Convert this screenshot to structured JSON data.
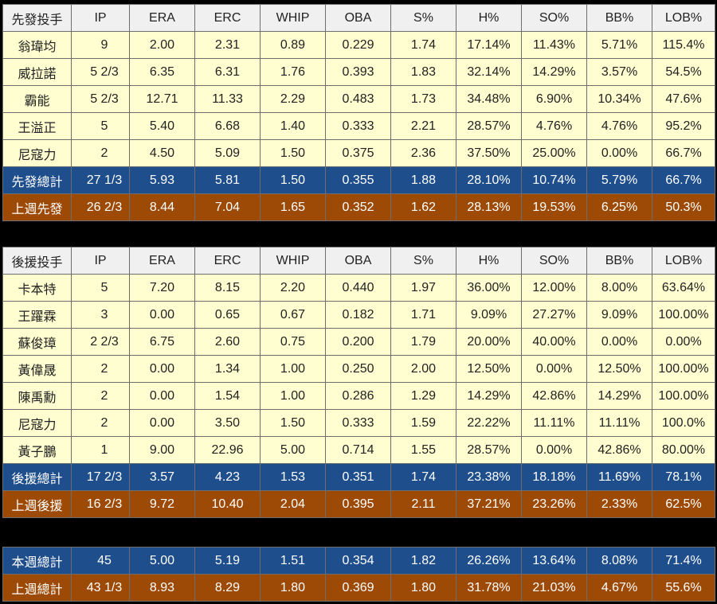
{
  "columns": [
    "IP",
    "ERA",
    "ERC",
    "WHIP",
    "OBA",
    "S%",
    "H%",
    "SO%",
    "BB%",
    "LOB%"
  ],
  "starters": {
    "header": "先發投手",
    "rows": [
      {
        "name": "翁瑋均",
        "vals": [
          "9",
          "2.00",
          "2.31",
          "0.89",
          "0.229",
          "1.74",
          "17.14%",
          "11.43%",
          "5.71%",
          "115.4%"
        ]
      },
      {
        "name": "威拉諾",
        "vals": [
          "5 2/3",
          "6.35",
          "6.31",
          "1.76",
          "0.393",
          "1.83",
          "32.14%",
          "14.29%",
          "3.57%",
          "54.5%"
        ]
      },
      {
        "name": "霸能",
        "vals": [
          "5 2/3",
          "12.71",
          "11.33",
          "2.29",
          "0.483",
          "1.73",
          "34.48%",
          "6.90%",
          "10.34%",
          "47.6%"
        ]
      },
      {
        "name": "王溢正",
        "vals": [
          "5",
          "5.40",
          "6.68",
          "1.40",
          "0.333",
          "2.21",
          "28.57%",
          "4.76%",
          "4.76%",
          "95.2%"
        ]
      },
      {
        "name": "尼寇力",
        "vals": [
          "2",
          "4.50",
          "5.09",
          "1.50",
          "0.375",
          "2.36",
          "37.50%",
          "25.00%",
          "0.00%",
          "66.7%"
        ]
      }
    ],
    "total": {
      "name": "先發總計",
      "vals": [
        "27 1/3",
        "5.93",
        "5.81",
        "1.50",
        "0.355",
        "1.88",
        "28.10%",
        "10.74%",
        "5.79%",
        "66.7%"
      ]
    },
    "last_week": {
      "name": "上週先發",
      "vals": [
        "26 2/3",
        "8.44",
        "7.04",
        "1.65",
        "0.352",
        "1.62",
        "28.13%",
        "19.53%",
        "6.25%",
        "50.3%"
      ]
    }
  },
  "relievers": {
    "header": "後援投手",
    "rows": [
      {
        "name": "卡本特",
        "vals": [
          "5",
          "7.20",
          "8.15",
          "2.20",
          "0.440",
          "1.97",
          "36.00%",
          "12.00%",
          "8.00%",
          "63.64%"
        ]
      },
      {
        "name": "王躍霖",
        "vals": [
          "3",
          "0.00",
          "0.65",
          "0.67",
          "0.182",
          "1.71",
          "9.09%",
          "27.27%",
          "9.09%",
          "100.00%"
        ]
      },
      {
        "name": "蘇俊璋",
        "vals": [
          "2 2/3",
          "6.75",
          "2.60",
          "0.75",
          "0.200",
          "1.79",
          "20.00%",
          "40.00%",
          "0.00%",
          "0.00%"
        ]
      },
      {
        "name": "黃偉晟",
        "vals": [
          "2",
          "0.00",
          "1.34",
          "1.00",
          "0.250",
          "2.00",
          "12.50%",
          "0.00%",
          "12.50%",
          "100.00%"
        ]
      },
      {
        "name": "陳禹勳",
        "vals": [
          "2",
          "0.00",
          "1.54",
          "1.00",
          "0.286",
          "1.29",
          "14.29%",
          "42.86%",
          "14.29%",
          "100.00%"
        ]
      },
      {
        "name": "尼寇力",
        "vals": [
          "2",
          "0.00",
          "3.50",
          "1.50",
          "0.333",
          "1.59",
          "22.22%",
          "11.11%",
          "11.11%",
          "100.0%"
        ]
      },
      {
        "name": "黃子鵬",
        "vals": [
          "1",
          "9.00",
          "22.96",
          "5.00",
          "0.714",
          "1.55",
          "28.57%",
          "0.00%",
          "42.86%",
          "80.00%"
        ]
      }
    ],
    "total": {
      "name": "後援總計",
      "vals": [
        "17 2/3",
        "3.57",
        "4.23",
        "1.53",
        "0.351",
        "1.74",
        "23.38%",
        "18.18%",
        "11.69%",
        "78.1%"
      ]
    },
    "last_week": {
      "name": "上週後援",
      "vals": [
        "16 2/3",
        "9.72",
        "10.40",
        "2.04",
        "0.395",
        "2.11",
        "37.21%",
        "23.26%",
        "2.33%",
        "62.5%"
      ]
    }
  },
  "summary": {
    "this_week": {
      "name": "本週總計",
      "vals": [
        "45",
        "5.00",
        "5.19",
        "1.51",
        "0.354",
        "1.82",
        "26.26%",
        "13.64%",
        "8.08%",
        "71.4%"
      ]
    },
    "last_week": {
      "name": "上週總計",
      "vals": [
        "43 1/3",
        "8.93",
        "8.29",
        "1.80",
        "0.369",
        "1.80",
        "31.78%",
        "21.03%",
        "4.67%",
        "55.6%"
      ]
    }
  }
}
